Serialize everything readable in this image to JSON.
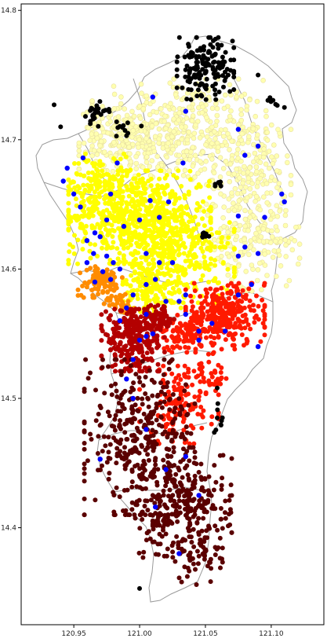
{
  "chart_data": {
    "type": "scatter",
    "title": "",
    "xlabel": "",
    "ylabel": "",
    "xlim": [
      120.91,
      121.14
    ],
    "ylim": [
      14.325,
      14.805
    ],
    "x_ticks": [
      120.95,
      121.0,
      121.05,
      121.1
    ],
    "x_tick_labels": [
      "120.95",
      "121.00",
      "121.05",
      "121.10"
    ],
    "y_ticks": [
      14.4,
      14.5,
      14.6,
      14.7,
      14.8
    ],
    "y_tick_labels": [
      "14.4",
      "14.5",
      "14.6",
      "14.7",
      "14.8"
    ],
    "grid": false,
    "legend": "none",
    "background_map": "city boundary outlines",
    "colors": {
      "outline": "#9a9a9a",
      "black": "#000000",
      "dark_red": "#5a0000",
      "red_dark": "#b30000",
      "red": "#ff1a00",
      "orange": "#ff8c00",
      "yellow": "#ffff00",
      "light_yellow": "#ffffb0",
      "blue": "#0000ff"
    },
    "series": [
      {
        "color": "light_yellow",
        "clusters": [
          {
            "cx": 121.03,
            "cy": 14.705,
            "rx": 0.055,
            "ry": 0.035,
            "n": 420
          },
          {
            "cx": 120.99,
            "cy": 14.7,
            "rx": 0.03,
            "ry": 0.02,
            "n": 150
          },
          {
            "cx": 121.085,
            "cy": 14.67,
            "rx": 0.025,
            "ry": 0.04,
            "n": 170
          },
          {
            "cx": 121.1,
            "cy": 14.62,
            "rx": 0.018,
            "ry": 0.03,
            "n": 80
          },
          {
            "cx": 121.07,
            "cy": 14.625,
            "rx": 0.02,
            "ry": 0.035,
            "n": 90
          }
        ]
      },
      {
        "color": "yellow",
        "clusters": [
          {
            "cx": 121.0,
            "cy": 14.64,
            "rx": 0.045,
            "ry": 0.03,
            "n": 650
          },
          {
            "cx": 120.97,
            "cy": 14.665,
            "rx": 0.02,
            "ry": 0.02,
            "n": 120
          },
          {
            "cx": 121.03,
            "cy": 14.61,
            "rx": 0.035,
            "ry": 0.03,
            "n": 260
          },
          {
            "cx": 121.01,
            "cy": 14.585,
            "rx": 0.02,
            "ry": 0.015,
            "n": 120
          }
        ]
      },
      {
        "color": "orange",
        "clusters": [
          {
            "cx": 120.97,
            "cy": 14.59,
            "rx": 0.014,
            "ry": 0.01,
            "n": 90
          },
          {
            "cx": 120.985,
            "cy": 14.575,
            "rx": 0.01,
            "ry": 0.008,
            "n": 40
          }
        ]
      },
      {
        "color": "red",
        "clusters": [
          {
            "cx": 121.065,
            "cy": 14.565,
            "rx": 0.025,
            "ry": 0.02,
            "n": 280
          },
          {
            "cx": 121.035,
            "cy": 14.55,
            "rx": 0.02,
            "ry": 0.012,
            "n": 110
          },
          {
            "cx": 121.03,
            "cy": 14.495,
            "rx": 0.025,
            "ry": 0.025,
            "n": 130
          },
          {
            "cx": 121.055,
            "cy": 14.52,
            "rx": 0.015,
            "ry": 0.015,
            "n": 40
          }
        ]
      },
      {
        "color": "red_dark",
        "clusters": [
          {
            "cx": 120.995,
            "cy": 14.545,
            "rx": 0.02,
            "ry": 0.02,
            "n": 260
          },
          {
            "cx": 121.01,
            "cy": 14.56,
            "rx": 0.015,
            "ry": 0.01,
            "n": 80
          }
        ]
      },
      {
        "color": "dark_red",
        "clusters": [
          {
            "cx": 121.0,
            "cy": 14.47,
            "rx": 0.035,
            "ry": 0.05,
            "n": 380
          },
          {
            "cx": 121.04,
            "cy": 14.42,
            "rx": 0.025,
            "ry": 0.035,
            "n": 200
          },
          {
            "cx": 121.045,
            "cy": 14.38,
            "rx": 0.015,
            "ry": 0.02,
            "n": 60
          },
          {
            "cx": 121.015,
            "cy": 14.4,
            "rx": 0.02,
            "ry": 0.02,
            "n": 60
          }
        ]
      },
      {
        "color": "black",
        "clusters": [
          {
            "cx": 121.05,
            "cy": 14.755,
            "rx": 0.018,
            "ry": 0.02,
            "n": 150
          },
          {
            "cx": 120.965,
            "cy": 14.72,
            "rx": 0.01,
            "ry": 0.008,
            "n": 25
          },
          {
            "cx": 120.99,
            "cy": 14.71,
            "rx": 0.01,
            "ry": 0.006,
            "n": 12
          },
          {
            "cx": 121.1,
            "cy": 14.73,
            "rx": 0.008,
            "ry": 0.006,
            "n": 6
          },
          {
            "cx": 121.06,
            "cy": 14.665,
            "rx": 0.003,
            "ry": 0.002,
            "n": 6
          },
          {
            "cx": 121.05,
            "cy": 14.625,
            "rx": 0.003,
            "ry": 0.003,
            "n": 8
          },
          {
            "cx": 121.06,
            "cy": 14.49,
            "rx": 0.003,
            "ry": 0.015,
            "n": 10
          }
        ],
        "points": [
          [
            120.935,
            14.727
          ],
          [
            120.94,
            14.71
          ],
          [
            121.09,
            14.75
          ],
          [
            121.11,
            14.725
          ],
          [
            121.0,
            14.353
          ]
        ]
      },
      {
        "color": "blue",
        "points": [
          [
            121.01,
            14.733
          ],
          [
            121.035,
            14.722
          ],
          [
            120.957,
            14.686
          ],
          [
            120.983,
            14.682
          ],
          [
            121.033,
            14.682
          ],
          [
            121.075,
            14.708
          ],
          [
            121.08,
            14.688
          ],
          [
            121.09,
            14.695
          ],
          [
            120.945,
            14.678
          ],
          [
            120.942,
            14.668
          ],
          [
            120.95,
            14.658
          ],
          [
            120.955,
            14.648
          ],
          [
            120.978,
            14.658
          ],
          [
            121.008,
            14.653
          ],
          [
            121.022,
            14.652
          ],
          [
            121.015,
            14.64
          ],
          [
            121.0,
            14.638
          ],
          [
            120.988,
            14.633
          ],
          [
            120.975,
            14.638
          ],
          [
            120.966,
            14.628
          ],
          [
            121.075,
            14.641
          ],
          [
            121.095,
            14.64
          ],
          [
            121.108,
            14.658
          ],
          [
            121.11,
            14.652
          ],
          [
            120.96,
            14.622
          ],
          [
            120.97,
            14.625
          ],
          [
            120.965,
            14.612
          ],
          [
            120.96,
            14.605
          ],
          [
            120.975,
            14.61
          ],
          [
            120.98,
            14.605
          ],
          [
            120.985,
            14.6
          ],
          [
            120.972,
            14.598
          ],
          [
            120.978,
            14.592
          ],
          [
            120.966,
            14.59
          ],
          [
            121.005,
            14.612
          ],
          [
            121.015,
            14.605
          ],
          [
            121.025,
            14.605
          ],
          [
            121.012,
            14.592
          ],
          [
            121.005,
            14.588
          ],
          [
            120.995,
            14.58
          ],
          [
            121.02,
            14.575
          ],
          [
            121.03,
            14.575
          ],
          [
            121.035,
            14.58
          ],
          [
            120.99,
            14.57
          ],
          [
            121.005,
            14.565
          ],
          [
            121.035,
            14.565
          ],
          [
            121.055,
            14.558
          ],
          [
            121.045,
            14.552
          ],
          [
            121.065,
            14.552
          ],
          [
            121.075,
            14.58
          ],
          [
            121.085,
            14.588
          ],
          [
            121.08,
            14.617
          ],
          [
            121.09,
            14.612
          ],
          [
            121.075,
            14.61
          ],
          [
            120.985,
            14.56
          ],
          [
            121.0,
            14.545
          ],
          [
            121.005,
            14.548
          ],
          [
            121.01,
            14.55
          ],
          [
            121.045,
            14.545
          ],
          [
            121.09,
            14.54
          ],
          [
            120.995,
            14.53
          ],
          [
            120.99,
            14.515
          ],
          [
            120.995,
            14.5
          ],
          [
            121.005,
            14.476
          ],
          [
            120.97,
            14.453
          ],
          [
            121.035,
            14.455
          ],
          [
            121.012,
            14.416
          ],
          [
            121.045,
            14.425
          ],
          [
            121.03,
            14.38
          ],
          [
            121.02,
            14.445
          ]
        ]
      }
    ]
  }
}
